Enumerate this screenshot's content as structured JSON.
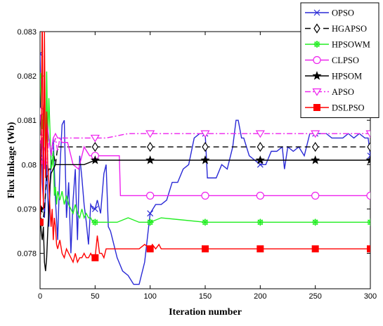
{
  "chart_data": {
    "type": "line",
    "title": "",
    "xlabel": "Iteration number",
    "ylabel": "Flux linkage (Wb)",
    "xlim": [
      0,
      300
    ],
    "ylim": [
      0.0772,
      0.083
    ],
    "grid": false,
    "legend_position": "top-right",
    "x_ticks": [
      "0",
      "50",
      "100",
      "150",
      "200",
      "250",
      "300"
    ],
    "x_tick_values": [
      0,
      50,
      100,
      150,
      200,
      250,
      300
    ],
    "y_ticks": [
      "0.078",
      "0.079",
      "0.08",
      "0.081",
      "0.082",
      "0.083"
    ],
    "y_tick_values": [
      0.078,
      0.079,
      0.08,
      0.081,
      0.082,
      0.083
    ],
    "series": [
      {
        "name": "OPSO",
        "color": "#2a2ad6",
        "dash": "solid",
        "marker": "x",
        "x": [
          0,
          2,
          4,
          6,
          8,
          10,
          12,
          14,
          16,
          18,
          20,
          22,
          24,
          26,
          28,
          30,
          32,
          34,
          36,
          38,
          40,
          42,
          44,
          46,
          48,
          50,
          52,
          55,
          58,
          60,
          62,
          64,
          66,
          70,
          75,
          80,
          85,
          90,
          95,
          100,
          105,
          110,
          115,
          120,
          125,
          130,
          135,
          140,
          145,
          150,
          152,
          155,
          160,
          165,
          170,
          175,
          178,
          180,
          183,
          185,
          190,
          195,
          200,
          205,
          210,
          215,
          220,
          222,
          225,
          230,
          235,
          240,
          245,
          250,
          255,
          260,
          265,
          270,
          275,
          280,
          285,
          290,
          295,
          298,
          300
        ],
        "y": [
          0.0825,
          0.0796,
          0.0788,
          0.08,
          0.0786,
          0.0802,
          0.0806,
          0.0792,
          0.0783,
          0.0799,
          0.0809,
          0.081,
          0.0788,
          0.0796,
          0.078,
          0.0792,
          0.0799,
          0.0783,
          0.0802,
          0.0797,
          0.0791,
          0.0787,
          0.0782,
          0.0791,
          0.079,
          0.079,
          0.0792,
          0.0789,
          0.0798,
          0.08,
          0.0786,
          0.0785,
          0.0783,
          0.0779,
          0.0776,
          0.0775,
          0.0773,
          0.0773,
          0.0778,
          0.0789,
          0.0791,
          0.0791,
          0.0792,
          0.0796,
          0.0796,
          0.0799,
          0.08,
          0.0806,
          0.0807,
          0.0807,
          0.0797,
          0.0797,
          0.0797,
          0.08,
          0.0799,
          0.0804,
          0.081,
          0.081,
          0.0806,
          0.0806,
          0.0802,
          0.0801,
          0.08,
          0.08,
          0.0803,
          0.0803,
          0.0804,
          0.0799,
          0.0804,
          0.0803,
          0.0804,
          0.0802,
          0.0807,
          0.0807,
          0.0807,
          0.0807,
          0.0806,
          0.0806,
          0.0806,
          0.0807,
          0.0806,
          0.0807,
          0.0806,
          0.0806,
          0.0802
        ]
      },
      {
        "name": "HGAPSO",
        "color": "#000000",
        "dash": "8,5",
        "marker": "diamond",
        "x": [
          0,
          2,
          4,
          6,
          8,
          10,
          12,
          14,
          16,
          18,
          20,
          24,
          28,
          32,
          36,
          40,
          45,
          50,
          60,
          80,
          100,
          150,
          200,
          250,
          300
        ],
        "y": [
          0.079,
          0.0786,
          0.079,
          0.0797,
          0.0799,
          0.0799,
          0.0803,
          0.08,
          0.0804,
          0.0804,
          0.0804,
          0.0804,
          0.0804,
          0.0804,
          0.0804,
          0.0804,
          0.0804,
          0.0804,
          0.0804,
          0.0804,
          0.0804,
          0.0804,
          0.0804,
          0.0804,
          0.0804
        ]
      },
      {
        "name": "HPSOWM",
        "color": "#22ee22",
        "dash": "solid",
        "marker": "asterisk",
        "x": [
          0,
          2,
          4,
          5,
          6,
          7,
          8,
          9,
          10,
          11,
          12,
          13,
          14,
          15,
          16,
          18,
          20,
          22,
          24,
          26,
          28,
          30,
          32,
          34,
          36,
          38,
          40,
          42,
          44,
          46,
          48,
          50,
          55,
          60,
          70,
          80,
          90,
          100,
          110,
          150,
          200,
          250,
          300
        ],
        "y": [
          0.082,
          0.0808,
          0.0815,
          0.0797,
          0.0821,
          0.0805,
          0.0815,
          0.0808,
          0.0799,
          0.08,
          0.0803,
          0.0793,
          0.0795,
          0.0791,
          0.0794,
          0.0792,
          0.0794,
          0.0791,
          0.0793,
          0.0791,
          0.079,
          0.0789,
          0.0791,
          0.0789,
          0.0788,
          0.079,
          0.0788,
          0.0789,
          0.0788,
          0.0788,
          0.0787,
          0.0787,
          0.0787,
          0.0787,
          0.0787,
          0.0788,
          0.0787,
          0.0787,
          0.0788,
          0.0787,
          0.0787,
          0.0787,
          0.0787
        ]
      },
      {
        "name": "CLPSO",
        "color": "#ee22ee",
        "dash": "solid",
        "marker": "circle",
        "x": [
          0,
          2,
          4,
          6,
          8,
          10,
          12,
          14,
          16,
          18,
          20,
          25,
          30,
          35,
          40,
          45,
          50,
          60,
          70,
          72,
          73,
          80,
          100,
          150,
          200,
          250,
          300
        ],
        "y": [
          0.0812,
          0.0805,
          0.0799,
          0.081,
          0.0806,
          0.0802,
          0.0806,
          0.0807,
          0.0806,
          0.0806,
          0.0805,
          0.0805,
          0.08,
          0.0799,
          0.0804,
          0.0802,
          0.0802,
          0.0802,
          0.0802,
          0.0802,
          0.0793,
          0.0793,
          0.0793,
          0.0793,
          0.0793,
          0.0793,
          0.0793
        ]
      },
      {
        "name": "HPSOM",
        "color": "#000000",
        "dash": "solid",
        "marker": "star",
        "x": [
          0,
          1,
          2,
          3,
          4,
          5,
          6,
          7,
          8,
          9,
          10,
          12,
          14,
          16,
          18,
          20,
          22,
          25,
          30,
          40,
          50,
          60,
          80,
          100,
          150,
          200,
          250,
          300
        ],
        "y": [
          0.079,
          0.0785,
          0.0783,
          0.0786,
          0.0778,
          0.0776,
          0.0779,
          0.0785,
          0.079,
          0.0795,
          0.0798,
          0.0799,
          0.08,
          0.08,
          0.08,
          0.08,
          0.08,
          0.08,
          0.08,
          0.08,
          0.0801,
          0.0801,
          0.0801,
          0.0801,
          0.0801,
          0.0801,
          0.0801,
          0.0801
        ]
      },
      {
        "name": "APSO",
        "color": "#ee22ee",
        "dash": "8,3,2,3",
        "marker": "triangle-down",
        "x": [
          0,
          2,
          4,
          6,
          8,
          10,
          12,
          14,
          16,
          18,
          20,
          25,
          30,
          35,
          40,
          50,
          60,
          80,
          100,
          150,
          200,
          250,
          300
        ],
        "y": [
          0.0806,
          0.08,
          0.0804,
          0.08,
          0.0806,
          0.0803,
          0.0804,
          0.0806,
          0.0803,
          0.0806,
          0.0806,
          0.0806,
          0.0806,
          0.0806,
          0.0806,
          0.0806,
          0.0806,
          0.0807,
          0.0807,
          0.0807,
          0.0807,
          0.0807,
          0.0807
        ]
      },
      {
        "name": "DSLPSO",
        "color": "#ff0000",
        "dash": "solid",
        "marker": "square",
        "x": [
          0,
          1,
          2,
          3,
          4,
          5,
          6,
          7,
          8,
          9,
          10,
          11,
          12,
          13,
          14,
          15,
          16,
          18,
          20,
          22,
          24,
          26,
          28,
          30,
          32,
          34,
          36,
          38,
          40,
          42,
          44,
          46,
          48,
          50,
          52,
          54,
          56,
          58,
          60,
          65,
          70,
          80,
          90,
          95,
          100,
          102,
          105,
          108,
          110,
          150,
          200,
          250,
          300
        ],
        "y": [
          0.0787,
          0.0805,
          0.0835,
          0.079,
          0.083,
          0.0797,
          0.0812,
          0.08,
          0.0796,
          0.079,
          0.0786,
          0.079,
          0.0783,
          0.0788,
          0.0786,
          0.0782,
          0.0781,
          0.0783,
          0.078,
          0.0779,
          0.0781,
          0.078,
          0.0779,
          0.0778,
          0.078,
          0.0778,
          0.0779,
          0.0779,
          0.078,
          0.0779,
          0.0779,
          0.078,
          0.0779,
          0.0779,
          0.0784,
          0.078,
          0.078,
          0.0779,
          0.0781,
          0.0781,
          0.0781,
          0.0781,
          0.0781,
          0.0782,
          0.0781,
          0.0782,
          0.0781,
          0.0782,
          0.0781,
          0.0781,
          0.0781,
          0.0781,
          0.0781
        ]
      }
    ]
  }
}
